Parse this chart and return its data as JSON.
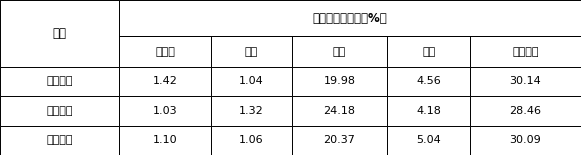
{
  "title_row": "有效成分提取率（%）",
  "col_header_left": "分组",
  "col_headers": [
    "香精油",
    "色素",
    "果胶",
    "黄酮",
    "膀食纤维"
  ],
  "row_labels": [
    "实施例一",
    "实施例二",
    "实施例二"
  ],
  "data": [
    [
      "1.42",
      "1.04",
      "19.98",
      "4.56",
      "30.14"
    ],
    [
      "1.03",
      "1.32",
      "24.18",
      "4.18",
      "28.46"
    ],
    [
      "1.10",
      "1.06",
      "20.37",
      "5.04",
      "30.09"
    ]
  ],
  "background": "#ffffff",
  "text_color": "#000000",
  "border_color": "#000000",
  "fig_width": 5.81,
  "fig_height": 1.55,
  "dpi": 100
}
